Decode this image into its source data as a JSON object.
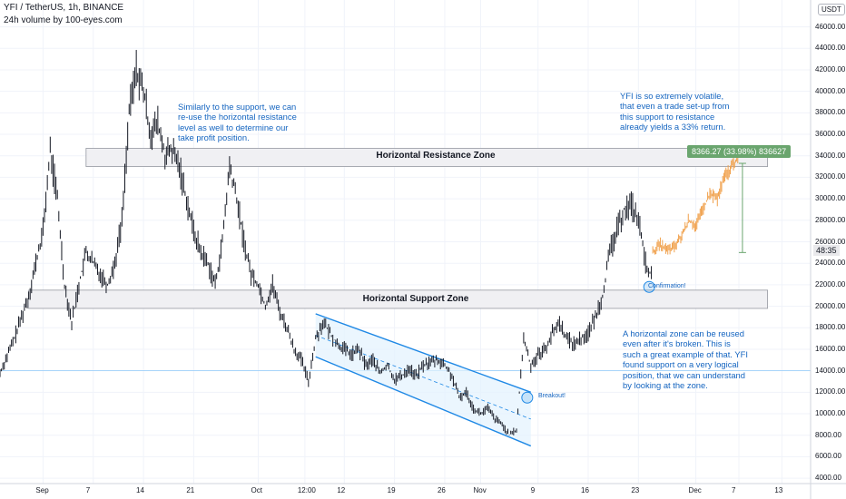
{
  "header": {
    "symbol_line": "YFI / TetherUS, 1h, BINANCE",
    "indicator_line": "24h volume by 100-eyes.com"
  },
  "currency_button": "USDT",
  "annotations": {
    "resistance_note": "Similarly to the support, we can re-use the horizontal resistance level as well to determine our take profit position.",
    "volatility_note": "YFI is so extremely volatile, that even a trade set-up from this support to resistance already yields a 33% return.",
    "reuse_note": "A horizontal zone can be reused even after it's broken. This is such a great example of that. YFI found support on a very logical position, that we can understand by looking at the zone.",
    "resistance_zone_label": "Horizontal Resistance Zone",
    "support_zone_label": "Horizontal Support Zone",
    "breakout_label": "Breakout!",
    "confirmation_label": "Confirmation!",
    "measure_label": "8366.27 (33.98%) 836627",
    "current_price_tag": "48:35"
  },
  "colors": {
    "candle": "#131722",
    "projection": "#f0a04b",
    "channel": "#1e88e5",
    "note_text": "#1565c0",
    "measure_box": "#6aa56e",
    "zone_fill": "#f0f0f3"
  },
  "chart_data": {
    "type": "line",
    "title": "YFI / TetherUS, 1h, BINANCE",
    "y_ticks": [
      4000,
      6000,
      8000,
      10000,
      12000,
      14000,
      16000,
      18000,
      20000,
      22000,
      24000,
      26000,
      28000,
      30000,
      32000,
      34000,
      36000,
      38000,
      40000,
      42000,
      44000,
      46000
    ],
    "y_tick_labels": [
      "4000.00",
      "6000.00",
      "8000.00",
      "10000.00",
      "12000.00",
      "14000.00",
      "16000.00",
      "18000.00",
      "20000.00",
      "22000.00",
      "24000.00",
      "26000.00",
      "28000.00",
      "30000.00",
      "32000.00",
      "34000.00",
      "36000.00",
      "38000.00",
      "40000.00",
      "42000.00",
      "44000.00",
      "46000.00"
    ],
    "ylim": [
      3500,
      48500
    ],
    "x_tick_labels": [
      "Sep",
      "7",
      "14",
      "21",
      "Oct",
      "12:00",
      "12",
      "19",
      "26",
      "Nov",
      "9",
      "16",
      "23",
      "Dec",
      "7",
      "13"
    ],
    "x_tick_days": [
      0,
      7,
      14,
      21,
      30,
      36.5,
      42,
      49,
      56,
      61,
      69,
      76,
      83,
      91,
      97,
      103
    ],
    "xlim": [
      -6,
      107
    ],
    "price_path": [
      {
        "d": -6,
        "v": 13800
      },
      {
        "d": -4,
        "v": 17000
      },
      {
        "d": -2,
        "v": 21000
      },
      {
        "d": 0,
        "v": 27000
      },
      {
        "d": 1,
        "v": 34500
      },
      {
        "d": 2,
        "v": 30000
      },
      {
        "d": 3,
        "v": 22000
      },
      {
        "d": 4,
        "v": 18500
      },
      {
        "d": 5,
        "v": 22000
      },
      {
        "d": 6,
        "v": 25000
      },
      {
        "d": 7,
        "v": 24000
      },
      {
        "d": 8,
        "v": 23000
      },
      {
        "d": 9,
        "v": 22000
      },
      {
        "d": 10,
        "v": 24000
      },
      {
        "d": 11,
        "v": 28000
      },
      {
        "d": 12,
        "v": 38000
      },
      {
        "d": 13,
        "v": 42000
      },
      {
        "d": 14,
        "v": 40000
      },
      {
        "d": 15,
        "v": 36000
      },
      {
        "d": 16,
        "v": 37000
      },
      {
        "d": 17,
        "v": 34000
      },
      {
        "d": 18,
        "v": 34500
      },
      {
        "d": 19,
        "v": 33000
      },
      {
        "d": 20,
        "v": 30000
      },
      {
        "d": 21,
        "v": 27000
      },
      {
        "d": 22,
        "v": 25000
      },
      {
        "d": 23,
        "v": 24000
      },
      {
        "d": 24,
        "v": 22000
      },
      {
        "d": 25,
        "v": 26000
      },
      {
        "d": 26,
        "v": 33000
      },
      {
        "d": 27,
        "v": 30000
      },
      {
        "d": 28,
        "v": 26000
      },
      {
        "d": 29,
        "v": 23000
      },
      {
        "d": 30,
        "v": 22000
      },
      {
        "d": 31,
        "v": 20000
      },
      {
        "d": 32,
        "v": 22000
      },
      {
        "d": 33,
        "v": 19500
      },
      {
        "d": 34,
        "v": 18000
      },
      {
        "d": 35,
        "v": 16000
      },
      {
        "d": 36,
        "v": 15000
      },
      {
        "d": 37,
        "v": 13000
      },
      {
        "d": 38,
        "v": 17000
      },
      {
        "d": 39,
        "v": 18500
      },
      {
        "d": 40,
        "v": 17500
      },
      {
        "d": 41,
        "v": 16500
      },
      {
        "d": 42,
        "v": 16000
      },
      {
        "d": 43,
        "v": 15500
      },
      {
        "d": 44,
        "v": 16000
      },
      {
        "d": 45,
        "v": 14500
      },
      {
        "d": 46,
        "v": 15000
      },
      {
        "d": 47,
        "v": 13800
      },
      {
        "d": 48,
        "v": 14500
      },
      {
        "d": 49,
        "v": 13200
      },
      {
        "d": 50,
        "v": 13500
      },
      {
        "d": 51,
        "v": 14200
      },
      {
        "d": 52,
        "v": 13500
      },
      {
        "d": 53,
        "v": 14500
      },
      {
        "d": 54,
        "v": 14800
      },
      {
        "d": 55,
        "v": 15000
      },
      {
        "d": 56,
        "v": 14500
      },
      {
        "d": 57,
        "v": 13500
      },
      {
        "d": 58,
        "v": 11500
      },
      {
        "d": 59,
        "v": 12000
      },
      {
        "d": 60,
        "v": 10500
      },
      {
        "d": 61,
        "v": 10000
      },
      {
        "d": 62,
        "v": 10500
      },
      {
        "d": 63,
        "v": 9500
      },
      {
        "d": 64,
        "v": 9000
      },
      {
        "d": 65,
        "v": 8000
      },
      {
        "d": 66,
        "v": 8500
      },
      {
        "d": 67,
        "v": 17000
      },
      {
        "d": 68,
        "v": 14500
      },
      {
        "d": 69,
        "v": 15500
      },
      {
        "d": 70,
        "v": 16000
      },
      {
        "d": 71,
        "v": 17500
      },
      {
        "d": 72,
        "v": 18500
      },
      {
        "d": 73,
        "v": 17000
      },
      {
        "d": 74,
        "v": 16500
      },
      {
        "d": 75,
        "v": 17000
      },
      {
        "d": 76,
        "v": 17500
      },
      {
        "d": 77,
        "v": 19000
      },
      {
        "d": 78,
        "v": 21000
      },
      {
        "d": 79,
        "v": 25000
      },
      {
        "d": 80,
        "v": 27000
      },
      {
        "d": 81,
        "v": 29000
      },
      {
        "d": 82,
        "v": 29500
      },
      {
        "d": 83,
        "v": 28000
      },
      {
        "d": 84,
        "v": 24000
      },
      {
        "d": 85,
        "v": 22500
      }
    ],
    "projection_path": [
      {
        "d": 85,
        "v": 25000
      },
      {
        "d": 86,
        "v": 25800
      },
      {
        "d": 87,
        "v": 25200
      },
      {
        "d": 88,
        "v": 25500
      },
      {
        "d": 89,
        "v": 26500
      },
      {
        "d": 90,
        "v": 28000
      },
      {
        "d": 91,
        "v": 27500
      },
      {
        "d": 92,
        "v": 29000
      },
      {
        "d": 93,
        "v": 30500
      },
      {
        "d": 94,
        "v": 30000
      },
      {
        "d": 95,
        "v": 32000
      },
      {
        "d": 96,
        "v": 33000
      },
      {
        "d": 97,
        "v": 34000
      }
    ],
    "resistance_zone": [
      33000,
      34700
    ],
    "support_zone": [
      19800,
      21500
    ],
    "horizontal_line": 14000,
    "channel_upper": [
      {
        "d": 38,
        "v": 19300
      },
      {
        "d": 68,
        "v": 12000
      }
    ],
    "channel_lower": [
      {
        "d": 38,
        "v": 15300
      },
      {
        "d": 68,
        "v": 7000
      }
    ],
    "breakout_point": {
      "d": 67.5,
      "v": 11500
    },
    "confirmation_point": {
      "d": 84.5,
      "v": 21800
    },
    "measure": {
      "d": 97.5,
      "from": 25000,
      "to": 33300
    }
  }
}
